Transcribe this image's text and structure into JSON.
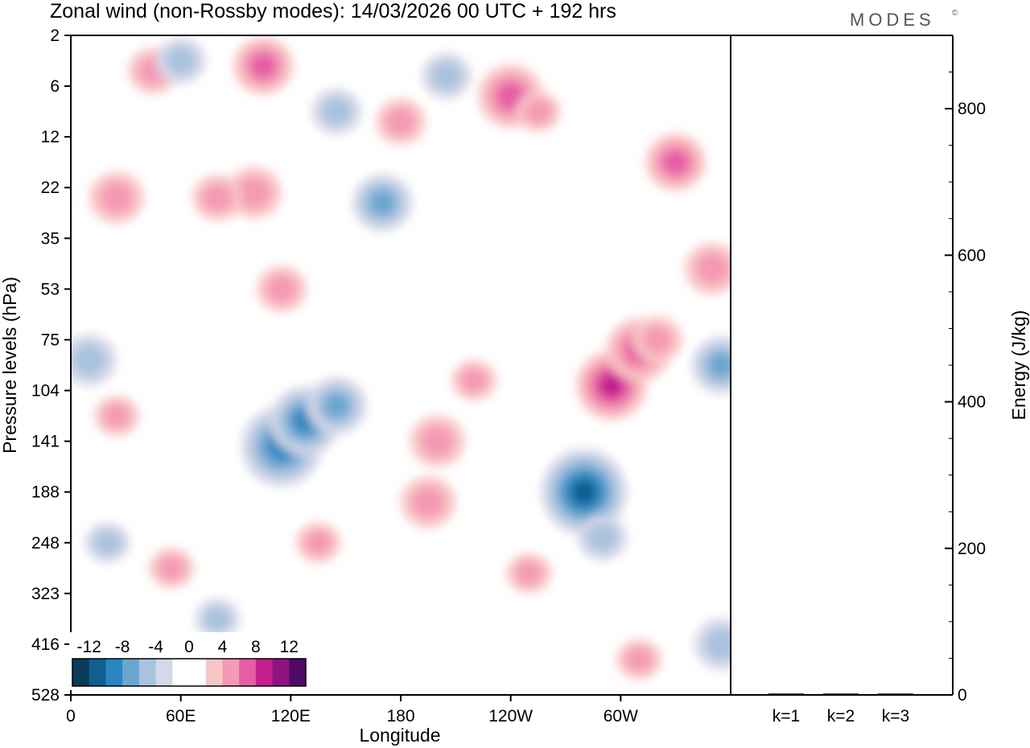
{
  "chart_data": [
    {
      "type": "heatmap",
      "title": "Zonal wind (non-Rossby modes):  14/03/2026  00 UTC  + 192 hrs",
      "brand": "MODES",
      "brand_mark": "©",
      "xlabel": "Longitude",
      "ylabel": "Pressure levels (hPa)",
      "x_ticks": [
        {
          "label": "0",
          "lon": 0
        },
        {
          "label": "60E",
          "lon": 60
        },
        {
          "label": "120E",
          "lon": 120
        },
        {
          "label": "180",
          "lon": 180
        },
        {
          "label": "120W",
          "lon": 240
        },
        {
          "label": "60W",
          "lon": 300
        }
      ],
      "xlim": [
        0,
        360
      ],
      "y_levels": [
        "2",
        "6",
        "12",
        "22",
        "35",
        "53",
        "75",
        "104",
        "141",
        "188",
        "248",
        "323",
        "416",
        "528"
      ],
      "colorbar": {
        "labels": [
          "-12",
          "-8",
          "-4",
          "0",
          "4",
          "8",
          "12"
        ],
        "colors": [
          "#0b3b5a",
          "#0f5f8f",
          "#2a86c0",
          "#6aa6d0",
          "#a9c2de",
          "#d5d8e8",
          "#ffffff",
          "#ffffff",
          "#f9c6c6",
          "#f49ab4",
          "#e65da4",
          "#c51f8e",
          "#8e137f",
          "#4e0a66"
        ]
      },
      "features": [
        {
          "lon": 115,
          "level_index": 8.1,
          "value": -10
        },
        {
          "lon": 128,
          "level_index": 7.6,
          "value": -8
        },
        {
          "lon": 145,
          "level_index": 7.3,
          "value": -6
        },
        {
          "lon": 170,
          "level_index": 3.3,
          "value": -6
        },
        {
          "lon": 280,
          "level_index": 9.0,
          "value": -11
        },
        {
          "lon": 290,
          "level_index": 9.9,
          "value": -4
        },
        {
          "lon": 355,
          "level_index": 6.5,
          "value": -6
        },
        {
          "lon": 355,
          "level_index": 12.0,
          "value": -5
        },
        {
          "lon": 10,
          "level_index": 6.4,
          "value": -5
        },
        {
          "lon": 195,
          "level_index": 9.2,
          "value": 5
        },
        {
          "lon": 200,
          "level_index": 8.0,
          "value": 5
        },
        {
          "lon": 220,
          "level_index": 6.8,
          "value": 3
        },
        {
          "lon": 240,
          "level_index": 1.2,
          "value": 7
        },
        {
          "lon": 255,
          "level_index": 1.5,
          "value": 3
        },
        {
          "lon": 295,
          "level_index": 6.9,
          "value": 8
        },
        {
          "lon": 310,
          "level_index": 6.2,
          "value": 7
        },
        {
          "lon": 320,
          "level_index": 6.0,
          "value": 4
        },
        {
          "lon": 350,
          "level_index": 4.6,
          "value": 5
        },
        {
          "lon": 330,
          "level_index": 2.5,
          "value": 6
        },
        {
          "lon": 100,
          "level_index": 3.1,
          "value": 5
        },
        {
          "lon": 80,
          "level_index": 3.2,
          "value": 4
        },
        {
          "lon": 25,
          "level_index": 3.2,
          "value": 5
        },
        {
          "lon": 105,
          "level_index": 0.6,
          "value": 6
        },
        {
          "lon": 45,
          "level_index": 0.7,
          "value": 4
        },
        {
          "lon": 180,
          "level_index": 1.7,
          "value": 4
        },
        {
          "lon": 115,
          "level_index": 5.0,
          "value": 4
        },
        {
          "lon": 55,
          "level_index": 10.5,
          "value": 3
        },
        {
          "lon": 25,
          "level_index": 7.5,
          "value": 3
        },
        {
          "lon": 145,
          "level_index": 1.5,
          "value": -4
        },
        {
          "lon": 60,
          "level_index": 0.5,
          "value": -4
        },
        {
          "lon": 205,
          "level_index": 0.8,
          "value": -4
        },
        {
          "lon": 135,
          "level_index": 10.0,
          "value": 3
        },
        {
          "lon": 310,
          "level_index": 12.3,
          "value": 3
        },
        {
          "lon": 250,
          "level_index": 10.6,
          "value": 3
        },
        {
          "lon": 80,
          "level_index": 11.5,
          "value": -3
        },
        {
          "lon": 20,
          "level_index": 10.0,
          "value": -3
        }
      ]
    },
    {
      "type": "bar",
      "ylabel": "Energy (J/kg)",
      "ylim": [
        0,
        900
      ],
      "y_ticks": [
        "0",
        "200",
        "400",
        "600",
        "800"
      ],
      "categories": [
        "k=1",
        "k=2",
        "k=3"
      ],
      "values": [
        1,
        1,
        1
      ]
    }
  ]
}
